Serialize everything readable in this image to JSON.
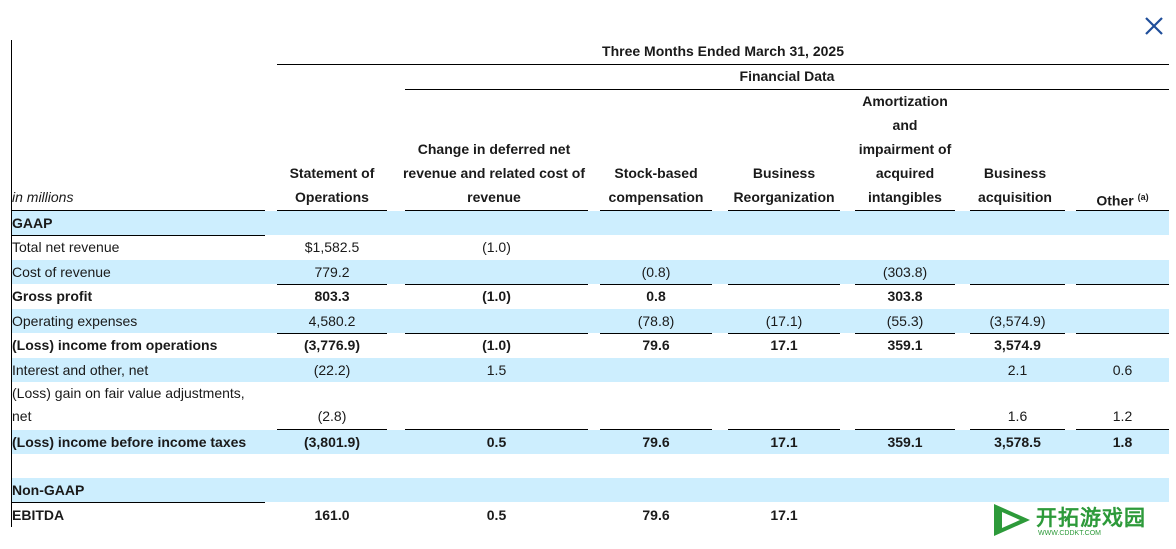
{
  "dialog": {
    "close_icon": "close-icon"
  },
  "header": {
    "period": "Three Months Ended March 31, 2025",
    "group": "Financial Data",
    "units_label": "in millions",
    "columns": [
      "Statement of Operations",
      "Change in deferred net revenue and related cost of revenue",
      "Stock-based compensation",
      "Business Reorganization",
      "Amortization and impairment of acquired intangibles",
      "Business acquisition",
      "Other"
    ],
    "other_footnote": "(a)"
  },
  "sections": {
    "gaap": "GAAP",
    "non_gaap": "Non-GAAP"
  },
  "rows": [
    {
      "label": "Total net revenue",
      "values": [
        "$1,582.5",
        "(1.0)",
        "",
        "",
        "",
        "",
        ""
      ]
    },
    {
      "label": "Cost of revenue",
      "values": [
        "779.2",
        "",
        "(0.8)",
        "",
        "(303.8)",
        "",
        ""
      ]
    },
    {
      "label": "Gross profit",
      "values": [
        "803.3",
        "(1.0)",
        "0.8",
        "",
        "303.8",
        "",
        ""
      ]
    },
    {
      "label": "Operating expenses",
      "values": [
        "4,580.2",
        "",
        "(78.8)",
        "(17.1)",
        "(55.3)",
        "(3,574.9)",
        ""
      ]
    },
    {
      "label": "(Loss) income from operations",
      "values": [
        "(3,776.9)",
        "(1.0)",
        "79.6",
        "17.1",
        "359.1",
        "3,574.9",
        ""
      ]
    },
    {
      "label": "Interest and other, net",
      "values": [
        "(22.2)",
        "1.5",
        "",
        "",
        "",
        "2.1",
        "0.6"
      ]
    },
    {
      "label_line1": "(Loss) gain on fair value adjustments,",
      "label_line2": "net",
      "values": [
        "(2.8)",
        "",
        "",
        "",
        "",
        "1.6",
        "1.2"
      ]
    },
    {
      "label": "(Loss) income before income taxes",
      "values": [
        "(3,801.9)",
        "0.5",
        "79.6",
        "17.1",
        "359.1",
        "3,578.5",
        "1.8"
      ]
    },
    {
      "label": "EBITDA",
      "values": [
        "161.0",
        "0.5",
        "79.6",
        "17.1",
        "",
        "",
        ""
      ]
    }
  ],
  "watermark": {
    "text": "开拓游戏园",
    "url": "WWW.CDDKT.COM",
    "color": "#2d9a3a"
  },
  "colors": {
    "band": "#cdeefe",
    "close": "#1f4e9a"
  }
}
